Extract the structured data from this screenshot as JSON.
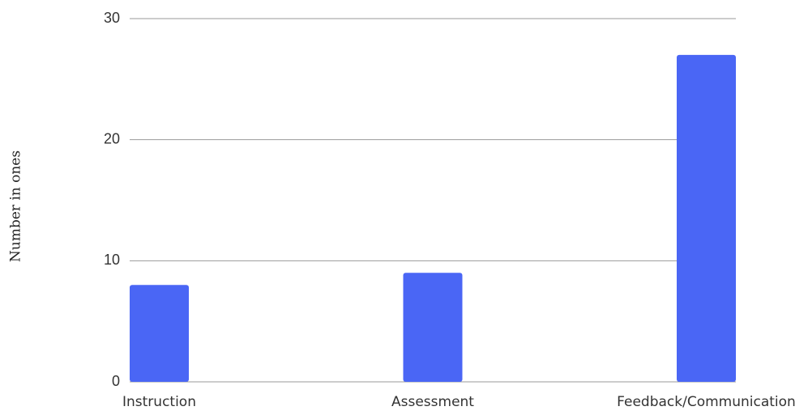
{
  "chart_data": {
    "type": "bar",
    "ylabel": "Number in ones",
    "categories": [
      "Instruction",
      "Assessment",
      "Feedback/Communication"
    ],
    "values": [
      8,
      9,
      27
    ],
    "color": "#4a66f5",
    "ylim": [
      0,
      30
    ],
    "yticks": [
      0,
      10,
      20,
      30
    ],
    "grid": true
  }
}
